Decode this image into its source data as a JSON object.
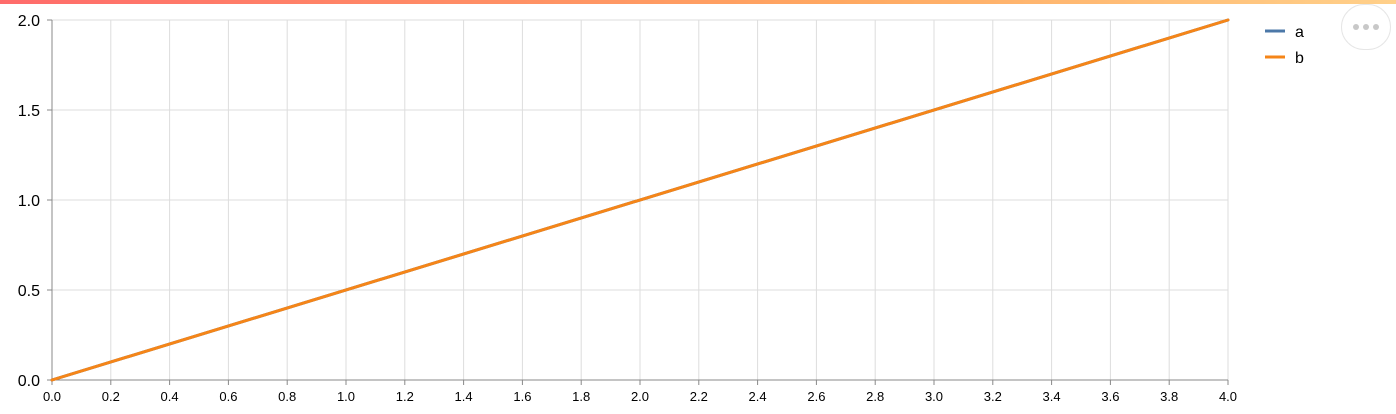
{
  "chart_data": {
    "type": "line",
    "x": [
      0.0,
      4.0
    ],
    "series": [
      {
        "name": "a",
        "color": "#4c78a8",
        "values": [
          0.0,
          2.0
        ]
      },
      {
        "name": "b",
        "color": "#f58518",
        "values": [
          0.0,
          2.0
        ]
      }
    ],
    "xlim": [
      0.0,
      4.0
    ],
    "ylim": [
      0.0,
      2.0
    ],
    "x_ticks": [
      "0.0",
      "0.2",
      "0.4",
      "0.6",
      "0.8",
      "1.0",
      "1.2",
      "1.4",
      "1.6",
      "1.8",
      "2.0",
      "2.2",
      "2.4",
      "2.6",
      "2.8",
      "3.0",
      "3.2",
      "3.4",
      "3.6",
      "3.8",
      "4.0"
    ],
    "y_ticks": [
      "0.0",
      "0.5",
      "1.0",
      "1.5",
      "2.0"
    ],
    "grid": true,
    "legend": "top-right"
  },
  "ui": {
    "more_icon": "more-horizontal-icon",
    "accent_gradient": [
      "#ff6b6b",
      "#ffa861",
      "#ffd08a"
    ]
  }
}
